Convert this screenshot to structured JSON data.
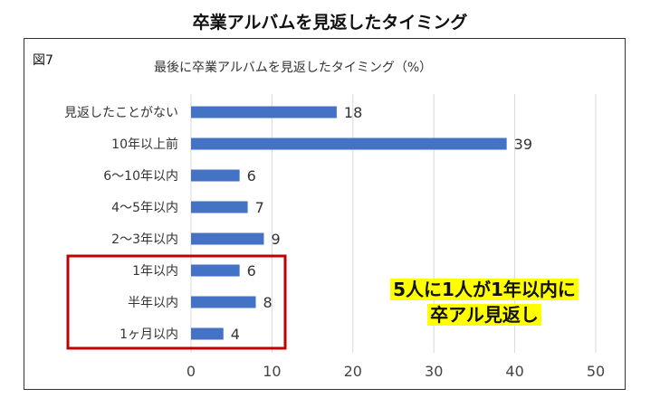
{
  "header": {
    "title": "卒業アルバムを見返したタイミング"
  },
  "figure": {
    "label": "図7"
  },
  "callout": {
    "line1": "5人に1人が1年以内に",
    "line2": "卒アル見返し"
  },
  "colors": {
    "bar": "#4472c4",
    "highlight_box": "#c00000",
    "callout_bg": "#ffff00",
    "grid": "#d9d9d9"
  },
  "chart_data": {
    "type": "bar",
    "orientation": "horizontal",
    "title": "最後に卒業アルバムを見返したタイミング（%）",
    "categories": [
      "見返したことがない",
      "10年以上前",
      "6～10年以内",
      "4～5年以内",
      "2～3年以内",
      "1年以内",
      "半年以内",
      "1ヶ月以内"
    ],
    "values": [
      18,
      39,
      6,
      7,
      9,
      6,
      8,
      4
    ],
    "xlim": [
      0,
      50
    ],
    "xticks": [
      0,
      10,
      20,
      30,
      40,
      50
    ],
    "grid": true,
    "highlighted_categories": [
      "1年以内",
      "半年以内",
      "1ヶ月以内"
    ]
  }
}
